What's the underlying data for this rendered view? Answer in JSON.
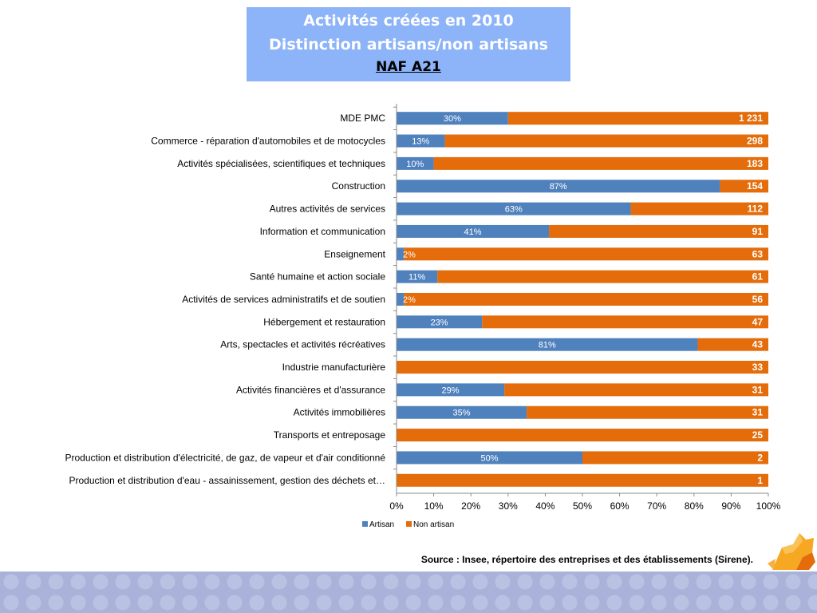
{
  "title": {
    "line1": "Activités créées en 2010",
    "line2": "Distinction artisans/non artisans",
    "line3": "NAF A21"
  },
  "source": "Source : Insee, répertoire des entreprises et des établissements (Sirene).",
  "colors": {
    "artisan": "#4f81bd",
    "non_artisan": "#e46c0a",
    "title_bg": "#8db3f8"
  },
  "chart_data": {
    "type": "bar",
    "orientation": "horizontal",
    "stacked": "percent",
    "title": "",
    "xlabel": "",
    "ylabel": "",
    "xlim": [
      0,
      1
    ],
    "x_ticks": [
      "0%",
      "10%",
      "20%",
      "30%",
      "40%",
      "50%",
      "60%",
      "70%",
      "80%",
      "90%",
      "100%"
    ],
    "grid": false,
    "legend_position": "bottom",
    "categories": [
      "MDE PMC",
      "Commerce -  réparation d'automobiles  et de motocycles",
      "Activités spécialisées, scientifiques et techniques",
      "Construction",
      "Autres activités  de services",
      "Information  et communication",
      "Enseignement",
      "Santé humaine et action sociale",
      "Activités de services administratifs  et de soutien",
      "Hébergement et restauration",
      "Arts, spectacles et activités  récréatives",
      "Industrie manufacturière",
      "Activités financières et d'assurance",
      "Activités immobilières",
      "Transports et entreposage",
      "Production et distribution d'électricité, de gaz, de vapeur et d'air conditionné",
      "Production et distribution d'eau -  assainissement,  gestion des déchets et…"
    ],
    "series": [
      {
        "name": "Artisan",
        "color": "#4f81bd",
        "values": [
          0.3,
          0.13,
          0.1,
          0.87,
          0.63,
          0.41,
          0.02,
          0.11,
          0.02,
          0.23,
          0.81,
          0,
          0.29,
          0.35,
          0,
          0.5,
          0
        ],
        "labels": [
          "30%",
          "13%",
          "10%",
          "87%",
          "63%",
          "41%",
          "2%",
          "11%",
          "2%",
          "23%",
          "81%",
          "",
          "29%",
          "35%",
          "",
          "50%",
          ""
        ]
      },
      {
        "name": "Non artisan",
        "color": "#e46c0a",
        "values": [
          0.7,
          0.87,
          0.9,
          0.13,
          0.37,
          0.59,
          0.98,
          0.89,
          0.98,
          0.77,
          0.19,
          1,
          0.71,
          0.65,
          1,
          0.5,
          1
        ]
      }
    ],
    "totals": [
      "1 231",
      "298",
      "183",
      "154",
      "112",
      "91",
      "63",
      "61",
      "56",
      "47",
      "43",
      "33",
      "31",
      "31",
      "25",
      "2",
      "1"
    ]
  }
}
